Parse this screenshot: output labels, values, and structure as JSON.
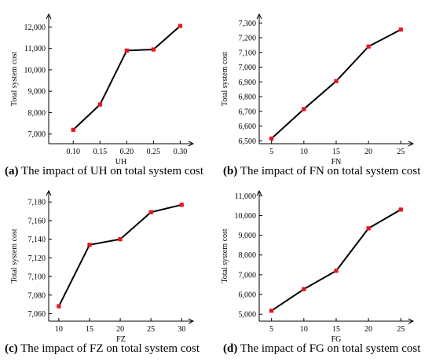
{
  "captions": [
    {
      "tag": "(a)",
      "text": " The impact of UH on total system cost"
    },
    {
      "tag": "(b)",
      "text": " The impact of FN on total system cost"
    },
    {
      "tag": "(c)",
      "text": " The impact of FZ on total system cost"
    },
    {
      "tag": "(d)",
      "text": " The impact of FG on total system cost"
    }
  ],
  "colors": {
    "line": "#000000",
    "marker": "#e8141c",
    "axis": "#000000"
  },
  "chart_data": [
    {
      "type": "line",
      "xlabel": "UH",
      "ylabel": "Total system cost",
      "categories": [
        "0.10",
        "0.15",
        "0.20",
        "0.25",
        "0.30"
      ],
      "values": [
        7200,
        8380,
        10900,
        10950,
        12050
      ],
      "yticks": [
        "7,000",
        "8,000",
        "9,000",
        "10,000",
        "11,000",
        "12,000"
      ],
      "ytick_values": [
        7000,
        8000,
        9000,
        10000,
        11000,
        12000
      ],
      "ylim": [
        6550,
        12600
      ],
      "grid": false,
      "legend": "none"
    },
    {
      "type": "line",
      "xlabel": "FN",
      "ylabel": "Total system cost",
      "categories": [
        "5",
        "10",
        "15",
        "20",
        "25"
      ],
      "values": [
        6515,
        6715,
        6905,
        7140,
        7255
      ],
      "yticks": [
        "6,500",
        "6,600",
        "6,700",
        "6,800",
        "6,900",
        "7,000",
        "7,100",
        "7,200",
        "7,300"
      ],
      "ytick_values": [
        6500,
        6600,
        6700,
        6800,
        6900,
        7000,
        7100,
        7200,
        7300
      ],
      "ylim": [
        6480,
        7360
      ],
      "grid": false,
      "legend": "none"
    },
    {
      "type": "line",
      "xlabel": "FZ",
      "ylabel": "Total system cost",
      "categories": [
        "10",
        "15",
        "20",
        "25",
        "30"
      ],
      "values": [
        7068,
        7134,
        7140,
        7169,
        7177
      ],
      "yticks": [
        "7,060",
        "7,080",
        "7,100",
        "7,120",
        "7,140",
        "7,160",
        "7,180"
      ],
      "ytick_values": [
        7060,
        7080,
        7100,
        7120,
        7140,
        7160,
        7180
      ],
      "ylim": [
        7052,
        7192
      ],
      "grid": false,
      "legend": "none"
    },
    {
      "type": "line",
      "xlabel": "FG",
      "ylabel": "Total system cost",
      "categories": [
        "5",
        "10",
        "15",
        "20",
        "25"
      ],
      "values": [
        5180,
        6270,
        7200,
        9350,
        10300
      ],
      "yticks": [
        "5,000",
        "6,000",
        "7,000",
        "8,000",
        "9,000",
        "10,000",
        "11,000"
      ],
      "ytick_values": [
        5000,
        6000,
        7000,
        8000,
        9000,
        10000,
        11000
      ],
      "ylim": [
        4650,
        11250
      ],
      "grid": false,
      "legend": "none"
    }
  ]
}
